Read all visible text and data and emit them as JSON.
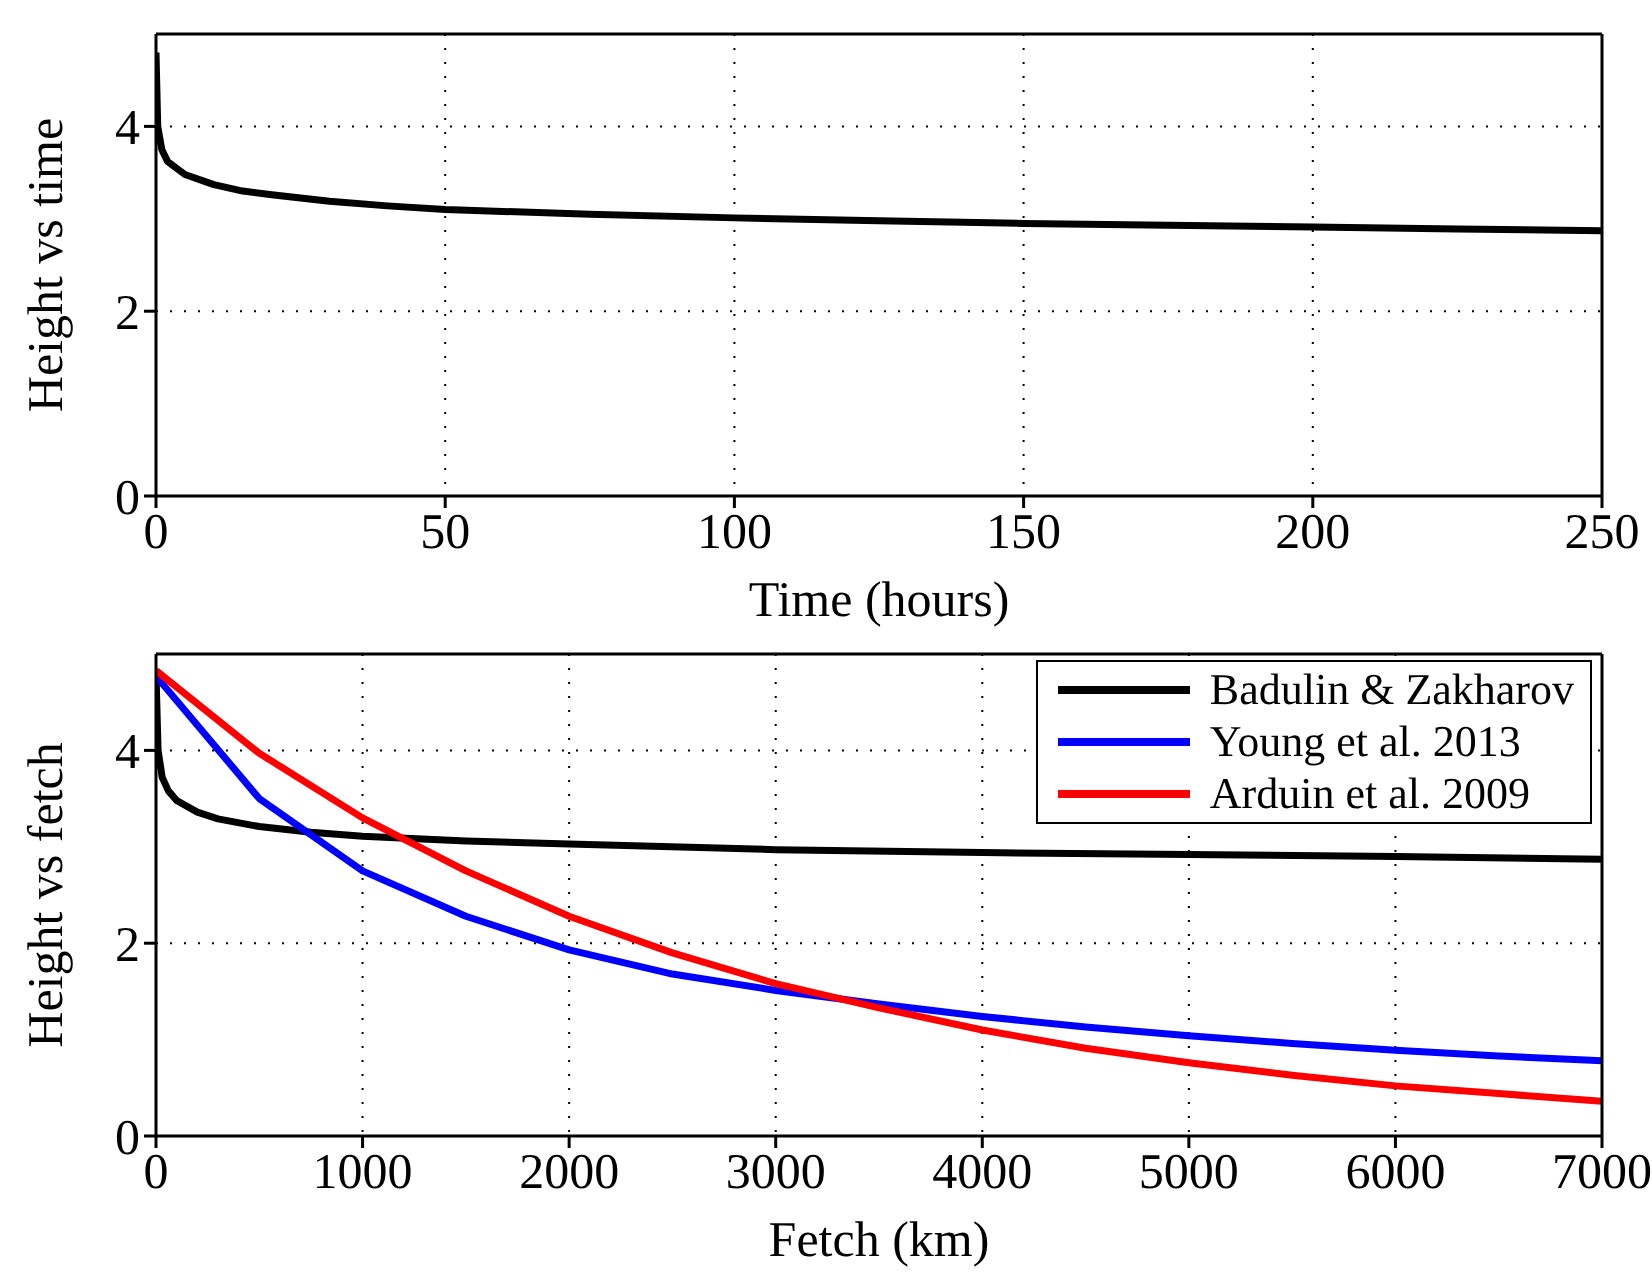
{
  "chart_data": [
    {
      "type": "line",
      "xlabel": "Time (hours)",
      "ylabel": "Height vs time",
      "xlim": [
        0,
        250
      ],
      "xticks": [
        0,
        50,
        100,
        150,
        200,
        250
      ],
      "ylim": [
        0,
        5
      ],
      "yticks": [
        0,
        2,
        4
      ],
      "grid": true,
      "legend": false,
      "marker": "none",
      "line_style": "solid",
      "series": [
        {
          "color": "#000000",
          "x": [
            0,
            0.3,
            1,
            2,
            5,
            10,
            15,
            20,
            30,
            40,
            50,
            75,
            100,
            125,
            150,
            175,
            200,
            225,
            250
          ],
          "values": [
            4.8,
            4.0,
            3.75,
            3.62,
            3.48,
            3.37,
            3.3,
            3.26,
            3.19,
            3.14,
            3.1,
            3.05,
            3.01,
            2.98,
            2.95,
            2.93,
            2.91,
            2.89,
            2.87
          ]
        }
      ]
    },
    {
      "type": "line",
      "xlabel": "Fetch (km)",
      "ylabel": "Height vs fetch",
      "xlim": [
        0,
        7000
      ],
      "xticks": [
        0,
        1000,
        2000,
        3000,
        4000,
        5000,
        6000,
        7000
      ],
      "ylim": [
        0,
        5
      ],
      "yticks": [
        0,
        2,
        4
      ],
      "grid": true,
      "legend": "top right",
      "marker": "none",
      "line_style": "solid",
      "series": [
        {
          "name": "Badulin & Zakharov",
          "color": "#000000",
          "x": [
            0,
            10,
            30,
            60,
            100,
            200,
            300,
            500,
            750,
            1000,
            1500,
            2000,
            3000,
            4000,
            5000,
            6000,
            7000
          ],
          "values": [
            4.8,
            4.0,
            3.72,
            3.58,
            3.48,
            3.36,
            3.29,
            3.21,
            3.15,
            3.11,
            3.06,
            3.03,
            2.97,
            2.94,
            2.92,
            2.9,
            2.87
          ]
        },
        {
          "name": "Young et al. 2013",
          "color": "#0000ff",
          "x": [
            0,
            500,
            1000,
            1500,
            2000,
            2500,
            3000,
            3500,
            4000,
            4500,
            5000,
            5500,
            6000,
            6500,
            7000
          ],
          "values": [
            4.77,
            3.5,
            2.75,
            2.28,
            1.93,
            1.68,
            1.51,
            1.37,
            1.24,
            1.13,
            1.04,
            0.96,
            0.89,
            0.83,
            0.78
          ]
        },
        {
          "name": "Arduin et al. 2009",
          "color": "#ff0000",
          "x": [
            0,
            500,
            1000,
            1500,
            2000,
            2500,
            3000,
            3500,
            4000,
            4500,
            5000,
            5500,
            6000,
            6500,
            7000
          ],
          "values": [
            4.83,
            3.97,
            3.3,
            2.75,
            2.28,
            1.9,
            1.58,
            1.33,
            1.1,
            0.91,
            0.76,
            0.63,
            0.52,
            0.44,
            0.36
          ]
        }
      ]
    }
  ]
}
